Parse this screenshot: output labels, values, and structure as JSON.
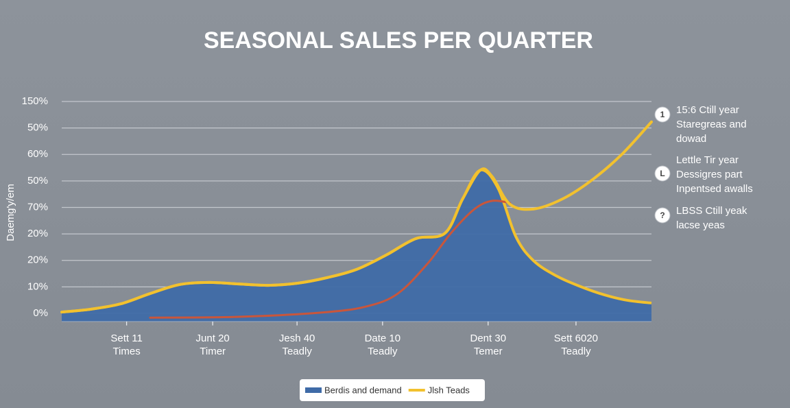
{
  "chart_data": {
    "type": "area_line",
    "title": "SEASONAL SALES PER QUARTER",
    "y_label": "Daemg'y/em",
    "xlim": [
      0,
      100
    ],
    "xticks": [
      {
        "value": 11,
        "label": "Sett 11",
        "sublabel": "Times"
      },
      {
        "value": 25.6,
        "label": "Junt 20",
        "sublabel": "Timer"
      },
      {
        "value": 39.9,
        "label": "Jesh 40",
        "sublabel": "Teadly"
      },
      {
        "value": 54.4,
        "label": "Date 10",
        "sublabel": "Teadly"
      },
      {
        "value": 72.3,
        "label": "Dent 30",
        "sublabel": "Temer"
      },
      {
        "value": 87.2,
        "label": "Sett 6020",
        "sublabel": "Teadly"
      }
    ],
    "ylim": [
      -0.3,
      8
    ],
    "yticks": [
      {
        "value": 0,
        "label": "0%"
      },
      {
        "value": 1,
        "label": "10%"
      },
      {
        "value": 2,
        "label": "20%"
      },
      {
        "value": 3,
        "label": "20%"
      },
      {
        "value": 4,
        "label": "70%"
      },
      {
        "value": 5,
        "label": "50%"
      },
      {
        "value": 6,
        "label": "60%"
      },
      {
        "value": 7,
        "label": "50%"
      },
      {
        "value": 8,
        "label": "150%"
      }
    ],
    "grid": true,
    "series": [
      {
        "name": "Berdis and demand",
        "color": "#3f6ba7",
        "kind": "area",
        "x": [
          0,
          5,
          10,
          15,
          20,
          25,
          30,
          35,
          40,
          45,
          50,
          55,
          60,
          65,
          68,
          71,
          74,
          77,
          80,
          84,
          88,
          92,
          96,
          100
        ],
        "values": [
          0.05,
          0.16,
          0.36,
          0.75,
          1.09,
          1.17,
          1.11,
          1.06,
          1.14,
          1.35,
          1.66,
          2.2,
          2.82,
          3.03,
          4.33,
          5.41,
          4.72,
          2.9,
          1.99,
          1.4,
          1.01,
          0.7,
          0.49,
          0.39
        ]
      },
      {
        "name": "Jlsh Teads",
        "color": "#f2c12e",
        "kind": "line",
        "x": [
          0,
          5,
          10,
          15,
          20,
          25,
          30,
          35,
          40,
          45,
          50,
          55,
          60,
          65,
          68,
          71,
          73,
          76,
          80,
          85,
          90,
          95,
          100
        ],
        "values": [
          0.05,
          0.16,
          0.36,
          0.75,
          1.09,
          1.17,
          1.11,
          1.06,
          1.14,
          1.35,
          1.66,
          2.2,
          2.82,
          3.03,
          4.33,
          5.41,
          5.16,
          4.12,
          3.94,
          4.33,
          5.05,
          6.01,
          7.23
        ]
      },
      {
        "color": "#c9563b",
        "kind": "line",
        "x": [
          15,
          30,
          45,
          52,
          57,
          62,
          66,
          70,
          73,
          76
        ],
        "values": [
          -0.16,
          -0.13,
          0.05,
          0.28,
          0.75,
          1.87,
          3.03,
          3.94,
          4.25,
          4.17
        ]
      }
    ],
    "annotations": [
      {
        "marker": "1",
        "lines": [
          "15:6 Ctill year",
          "Staregreas and",
          "dowad"
        ]
      },
      {
        "marker": "L",
        "lines": [
          "Lettle Tir year",
          "Dessigres part",
          "Inpentsed awalls"
        ]
      },
      {
        "marker": "?",
        "lines": [
          "LBSS Ctill yeak",
          "lacse yeas"
        ]
      }
    ]
  }
}
